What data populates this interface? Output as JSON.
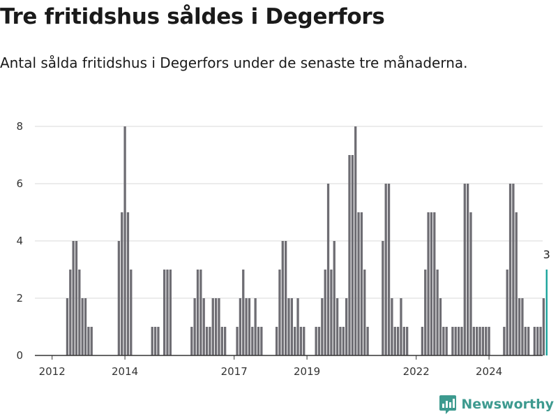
{
  "title": "Tre fritidshus såldes i Degerfors",
  "subtitle": "Antal sålda fritidshus i Degerfors under de senaste tre månaderna.",
  "brand": {
    "name": "Newsworthy",
    "color": "#3d9a8f"
  },
  "colors": {
    "bar": "#6e6d73",
    "highlight": "#19a39c",
    "grid": "#d9d9d9",
    "axis": "#333333"
  },
  "chart_data": {
    "type": "bar",
    "x_start": "2011-10",
    "interval": "month",
    "ylim": [
      0,
      8
    ],
    "yticks": [
      0,
      2,
      4,
      6,
      8
    ],
    "xticks": [
      "2012",
      "2014",
      "2017",
      "2019",
      "2022",
      "2024"
    ],
    "grid": true,
    "highlight_last": true,
    "value_label": "3",
    "values": [
      0,
      0,
      0,
      0,
      0,
      0,
      0,
      0,
      2,
      3,
      4,
      4,
      3,
      2,
      2,
      1,
      1,
      0,
      0,
      0,
      0,
      0,
      0,
      0,
      0,
      4,
      5,
      8,
      5,
      3,
      0,
      0,
      0,
      0,
      0,
      0,
      1,
      1,
      1,
      0,
      3,
      3,
      3,
      0,
      0,
      0,
      0,
      0,
      0,
      1,
      2,
      3,
      3,
      2,
      1,
      1,
      2,
      2,
      2,
      1,
      1,
      0,
      0,
      0,
      1,
      2,
      3,
      2,
      2,
      1,
      2,
      1,
      1,
      0,
      0,
      0,
      0,
      1,
      3,
      4,
      4,
      2,
      2,
      1,
      2,
      1,
      1,
      0,
      0,
      0,
      1,
      1,
      2,
      3,
      6,
      3,
      4,
      2,
      1,
      1,
      2,
      7,
      7,
      8,
      5,
      5,
      3,
      1,
      0,
      0,
      0,
      0,
      4,
      6,
      6,
      2,
      1,
      1,
      2,
      1,
      1,
      0,
      0,
      0,
      0,
      1,
      3,
      5,
      5,
      5,
      3,
      2,
      1,
      1,
      0,
      1,
      1,
      1,
      1,
      6,
      6,
      5,
      1,
      1,
      1,
      1,
      1,
      1,
      0,
      0,
      0,
      0,
      1,
      3,
      6,
      6,
      5,
      2,
      2,
      1,
      1,
      0,
      1,
      1,
      1,
      2,
      3
    ]
  }
}
